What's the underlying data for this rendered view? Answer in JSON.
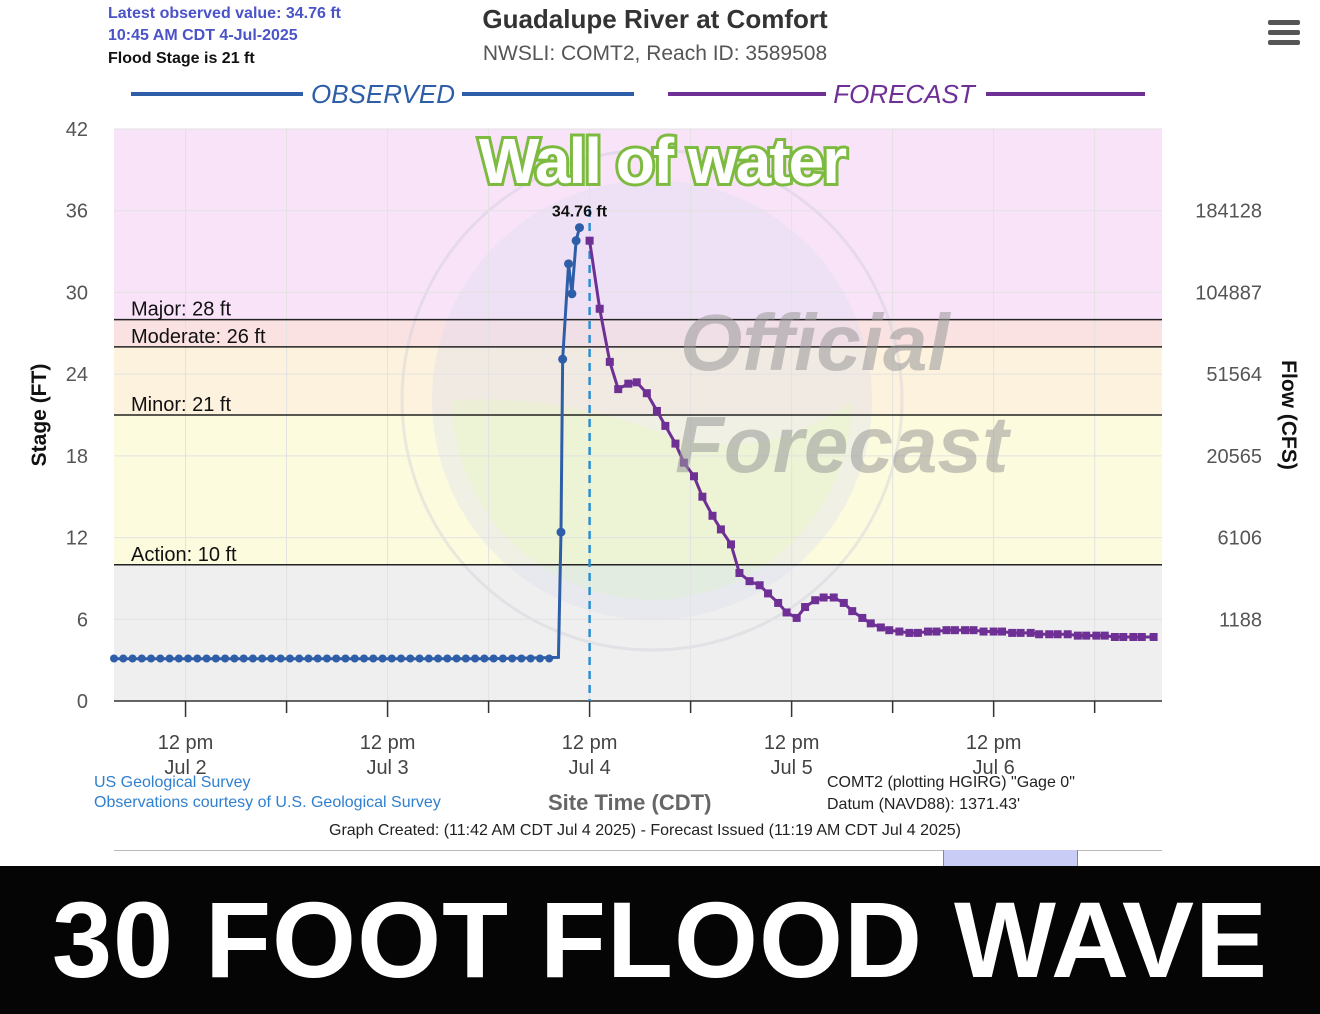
{
  "header": {
    "latest_value": "Latest observed value: 34.76 ft",
    "latest_time": "10:45 AM CDT 4-Jul-2025",
    "flood_stage": "Flood Stage is 21 ft",
    "title": "Guadalupe River at Comfort",
    "subtitle": "NWSLI: COMT2, Reach ID: 3589508"
  },
  "overlay": {
    "headline": "Wall of water",
    "watermark_word1": "Official",
    "watermark_word2": "Forecast",
    "banner": "30 FOOT FLOOD WAVE"
  },
  "footer": {
    "usgs": "US Geological Survey",
    "courtesy": "Observations courtesy of U.S. Geological Survey",
    "xaxis_title": "Site Time (CDT)",
    "gage": "COMT2 (plotting HGIRG) \"Gage 0\"",
    "datum": "Datum (NAVD88): 1371.43'",
    "created": "Graph Created: (11:42 AM CDT Jul 4 2025) - Forecast Issued (11:19 AM CDT Jul 4 2025)"
  },
  "colors": {
    "observed": "#2f5ea8",
    "forecast": "#6e3095",
    "major_band": "#f9e3f9",
    "moderate_band": "#fbe2e2",
    "minor_band": "#fdf2dd",
    "action_band": "#fcfbde",
    "normal_band": "#efefef",
    "headline_fill": "#ffffff",
    "headline_stroke": "#7cbb3f",
    "forecast_line": "#2b8fd1",
    "peak_label": "#111111"
  },
  "chart_data": {
    "type": "line",
    "title": "Guadalupe River at Comfort",
    "subtitle": "NWSLI: COMT2, Reach ID: 3589508",
    "ylabel": "Stage (FT)",
    "y2label": "Flow (CFS)",
    "xlabel": "Site Time (CDT)",
    "ylim": [
      0,
      42
    ],
    "y_ticks": [
      0,
      6,
      12,
      18,
      24,
      30,
      36,
      42
    ],
    "y2_ticks": [
      {
        "stage": 6,
        "label": "1188"
      },
      {
        "stage": 12,
        "label": "6106"
      },
      {
        "stage": 18,
        "label": "20565"
      },
      {
        "stage": 24,
        "label": "51564"
      },
      {
        "stage": 30,
        "label": "104887"
      },
      {
        "stage": 36,
        "label": "184128"
      }
    ],
    "xlim_hours": [
      -8.5,
      116
    ],
    "x_ticks": [
      {
        "hour": 0,
        "label1": "12 pm",
        "label2": "Jul 2"
      },
      {
        "hour": 24,
        "label1": "12 pm",
        "label2": "Jul 3"
      },
      {
        "hour": 48,
        "label1": "12 pm",
        "label2": "Jul 4"
      },
      {
        "hour": 72,
        "label1": "12 pm",
        "label2": "Jul 5"
      },
      {
        "hour": 96,
        "label1": "12 pm",
        "label2": "Jul 6"
      }
    ],
    "x_minor_hours": [
      12,
      36,
      60,
      84,
      108
    ],
    "segment_labels": {
      "observed": "OBSERVED",
      "forecast": "FORECAST"
    },
    "thresholds": [
      {
        "name": "Major: 28 ft",
        "value": 28
      },
      {
        "name": "Moderate: 26 ft",
        "value": 26
      },
      {
        "name": "Minor: 21 ft",
        "value": 21
      },
      {
        "name": "Action: 10 ft",
        "value": 10
      }
    ],
    "forecast_issued_hour": 48,
    "peak": {
      "label": "34.76 ft",
      "hour": 46.8,
      "value": 34.76
    },
    "series": [
      {
        "name": "OBSERVED",
        "points": [
          [
            -8.5,
            3.1
          ],
          [
            -4,
            3.1
          ],
          [
            0,
            3.1
          ],
          [
            4,
            3.1
          ],
          [
            8,
            3.1
          ],
          [
            12,
            3.1
          ],
          [
            16,
            3.1
          ],
          [
            20,
            3.1
          ],
          [
            24,
            3.1
          ],
          [
            28,
            3.1
          ],
          [
            32,
            3.1
          ],
          [
            36,
            3.1
          ],
          [
            40,
            3.15
          ],
          [
            44.3,
            3.2
          ],
          [
            44.6,
            12.4
          ],
          [
            44.8,
            25.1
          ],
          [
            45.5,
            32.1
          ],
          [
            45.9,
            29.9
          ],
          [
            46.4,
            33.8
          ],
          [
            46.8,
            34.76
          ]
        ]
      },
      {
        "name": "FORECAST",
        "points": [
          [
            48,
            33.8
          ],
          [
            49.2,
            28.8
          ],
          [
            50.4,
            24.9
          ],
          [
            51.4,
            22.9
          ],
          [
            52.6,
            23.3
          ],
          [
            53.6,
            23.4
          ],
          [
            54.8,
            22.6
          ],
          [
            56,
            21.3
          ],
          [
            57,
            20.2
          ],
          [
            58.2,
            18.9
          ],
          [
            59.2,
            17.5
          ],
          [
            60.4,
            16.5
          ],
          [
            61.4,
            15.0
          ],
          [
            62.6,
            13.6
          ],
          [
            63.6,
            12.6
          ],
          [
            64.8,
            11.5
          ],
          [
            65.8,
            9.4
          ],
          [
            67,
            8.8
          ],
          [
            68.2,
            8.5
          ],
          [
            69.2,
            7.9
          ],
          [
            70.4,
            7.2
          ],
          [
            71.4,
            6.5
          ],
          [
            72.6,
            6.1
          ],
          [
            73.6,
            6.9
          ],
          [
            74.8,
            7.4
          ],
          [
            75.8,
            7.6
          ],
          [
            77,
            7.6
          ],
          [
            78.2,
            7.2
          ],
          [
            79.2,
            6.6
          ],
          [
            80.4,
            6.1
          ],
          [
            81.4,
            5.7
          ],
          [
            82.6,
            5.4
          ],
          [
            83.6,
            5.2
          ],
          [
            84.8,
            5.1
          ],
          [
            86,
            5.0
          ],
          [
            87,
            5.0
          ],
          [
            88.2,
            5.1
          ],
          [
            89.2,
            5.1
          ],
          [
            90.4,
            5.2
          ],
          [
            91.4,
            5.2
          ],
          [
            92.6,
            5.2
          ],
          [
            93.6,
            5.2
          ],
          [
            94.8,
            5.1
          ],
          [
            96,
            5.1
          ],
          [
            97,
            5.1
          ],
          [
            98.2,
            5.0
          ],
          [
            99.2,
            5.0
          ],
          [
            100.4,
            5.0
          ],
          [
            101.4,
            4.9
          ],
          [
            102.6,
            4.9
          ],
          [
            103.6,
            4.9
          ],
          [
            104.8,
            4.9
          ],
          [
            106,
            4.8
          ],
          [
            107,
            4.8
          ],
          [
            108.2,
            4.8
          ],
          [
            109.2,
            4.8
          ],
          [
            110.4,
            4.7
          ],
          [
            111.4,
            4.7
          ],
          [
            112.6,
            4.7
          ],
          [
            113.6,
            4.7
          ],
          [
            115,
            4.7
          ]
        ]
      }
    ]
  }
}
